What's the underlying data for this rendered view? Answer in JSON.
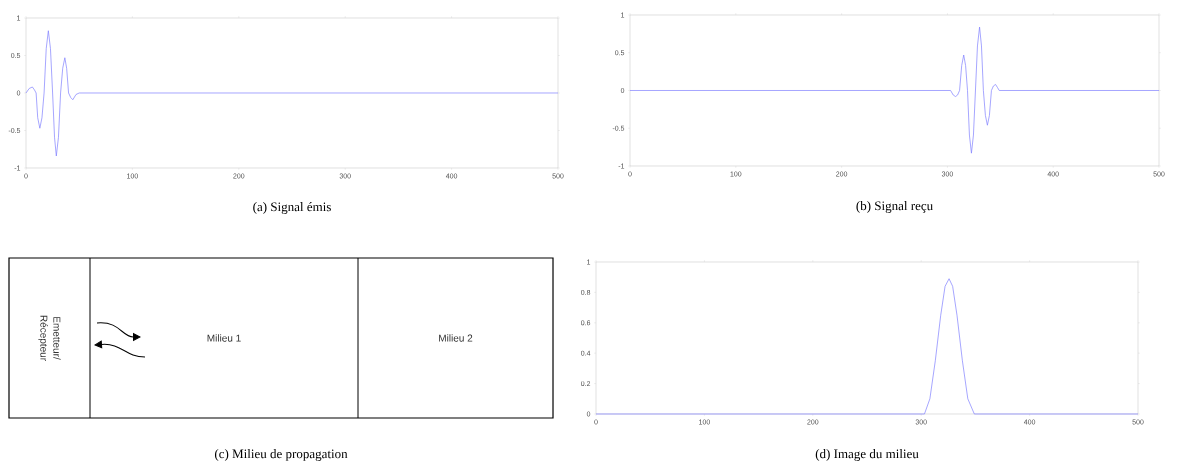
{
  "chart_data": [
    {
      "type": "line",
      "title": "(a) Signal émis",
      "color": "#7f7fff",
      "x": [
        0,
        3,
        6,
        8,
        9.5,
        11,
        13,
        15,
        17,
        19,
        21,
        23,
        25,
        26.8,
        28.5,
        30.5,
        32.5,
        34.5,
        36.5,
        38.2,
        40,
        42,
        44,
        47,
        50,
        500
      ],
      "values": [
        0,
        0.06,
        0.08,
        0.04,
        0,
        -0.33,
        -0.47,
        -0.33,
        0,
        0.59,
        0.83,
        0.59,
        0,
        -0.59,
        -0.84,
        -0.59,
        0,
        0.33,
        0.47,
        0.33,
        0,
        -0.06,
        -0.09,
        -0.02,
        0,
        0
      ],
      "xlim": [
        0,
        500
      ],
      "ylim": [
        -1,
        1
      ],
      "xticks": [
        0,
        100,
        200,
        300,
        400,
        500
      ],
      "yticks": [
        -1,
        -0.5,
        0,
        0.5,
        1
      ]
    },
    {
      "type": "line",
      "title": "(b) Signal reçu",
      "color": "#7f7fff",
      "x": [
        0,
        303,
        305.5,
        307.7,
        309.6,
        311.5,
        313.5,
        315.4,
        317.2,
        319,
        320.8,
        322.7,
        324.6,
        326.5,
        328.4,
        330.4,
        332.2,
        334,
        335.9,
        337.8,
        339.7,
        341.6,
        343.5,
        345.5,
        347.3,
        349,
        500
      ],
      "values": [
        0,
        0,
        -0.06,
        -0.08,
        -0.06,
        0,
        0.33,
        0.47,
        0.33,
        0,
        -0.59,
        -0.83,
        -0.59,
        0,
        0.59,
        0.84,
        0.59,
        0,
        -0.33,
        -0.46,
        -0.33,
        0,
        0.06,
        0.08,
        0.04,
        0,
        0
      ],
      "xlim": [
        0,
        500
      ],
      "ylim": [
        -1,
        1
      ],
      "xticks": [
        0,
        100,
        200,
        300,
        400,
        500
      ],
      "yticks": [
        -1,
        -0.5,
        0,
        0.5,
        1
      ]
    },
    {
      "type": "other",
      "title": "(c) Milieu de propagation",
      "annotations": [
        "Emetteur/ Récepteur",
        "Milieu 1",
        "Milieu 2"
      ]
    },
    {
      "type": "line",
      "title": "(d) Image du milieu",
      "color": "#7f7fff",
      "x": [
        0,
        303,
        308,
        313,
        318,
        322,
        325.7,
        329,
        333,
        338,
        343,
        349,
        500
      ],
      "values": [
        0,
        0,
        0.1,
        0.35,
        0.65,
        0.84,
        0.89,
        0.84,
        0.65,
        0.35,
        0.1,
        0,
        0
      ],
      "xlim": [
        0,
        500
      ],
      "ylim": [
        0,
        1
      ],
      "xticks": [
        0,
        100,
        200,
        300,
        400,
        500
      ],
      "yticks": [
        0,
        0.2,
        0.4,
        0.6,
        0.8,
        1
      ]
    }
  ]
}
